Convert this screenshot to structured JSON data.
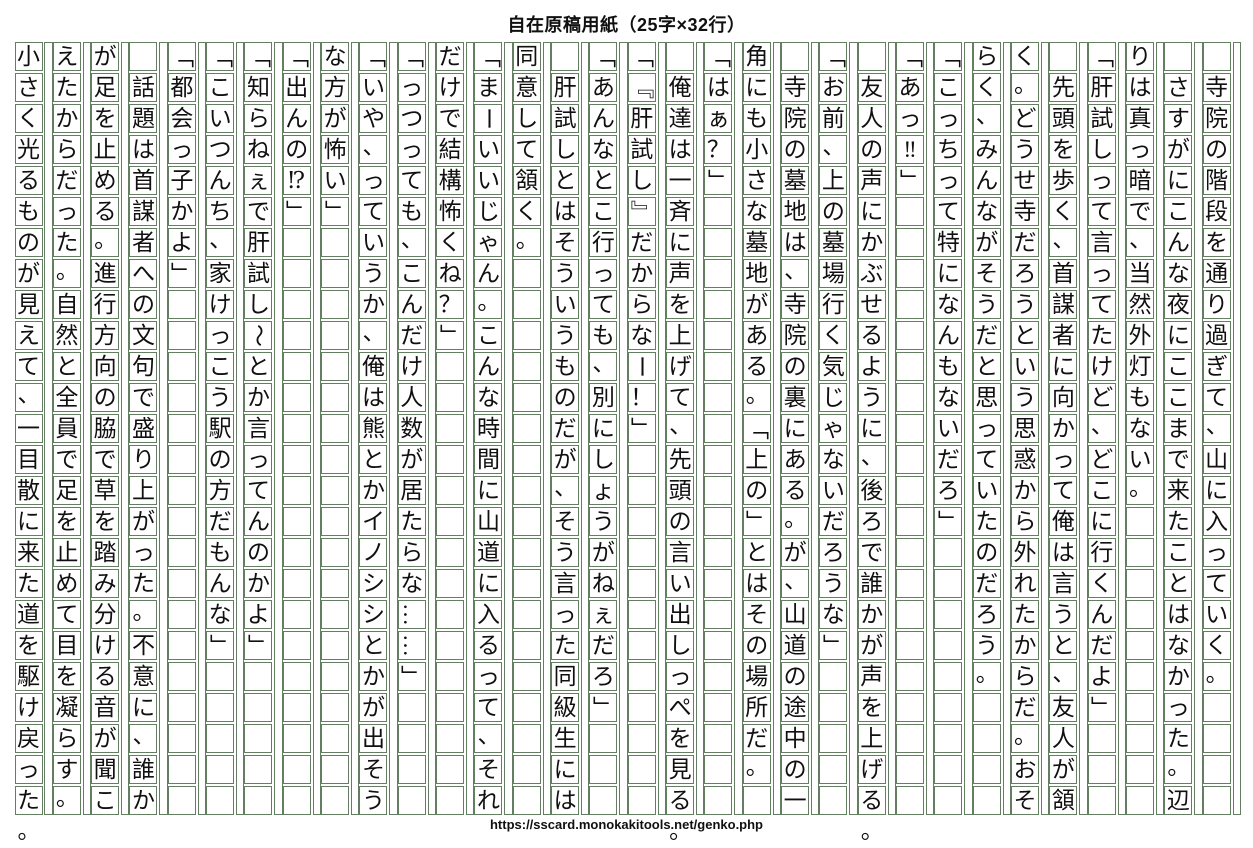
{
  "title": "自在原稿用紙（25字×32行）",
  "footer_url": "https://sscard.monokakitools.net/genko.php",
  "grid": {
    "columns": 32,
    "rows": 25,
    "border_color": "#637e60",
    "direction": "vertical-right-to-left"
  },
  "manuscript": {
    "columns": [
      {
        "indent": true,
        "text": "寺院の階段を通り過ぎて、山に入っていく。"
      },
      {
        "indent": true,
        "text": "さすがにこんな夜にここまで来たことはなかった。辺"
      },
      {
        "indent": false,
        "text": "りは真っ暗で、当然外灯もない。"
      },
      {
        "indent": false,
        "text": "「肝試しって言ってたけど、どこに行くんだよ」"
      },
      {
        "indent": true,
        "text": "先頭を歩く、首謀者に向かって俺は言うと、友人が頷"
      },
      {
        "indent": false,
        "text": "く。どうせ寺だろうという思惑から外れたからだ。おそ"
      },
      {
        "indent": false,
        "text": "らく、みんながそうだと思っていたのだろう。"
      },
      {
        "indent": false,
        "text": "「こっちって特になんもないだろ」"
      },
      {
        "indent": false,
        "text": "「あっ‼」"
      },
      {
        "indent": true,
        "text": "友人の声にかぶせるように、後ろで誰かが声を上げる。"
      },
      {
        "indent": false,
        "text": "「お前、上の墓場行く気じゃないだろうな」"
      },
      {
        "indent": true,
        "text": "寺院の墓地は、寺院の裏にある。が、山道の途中の一"
      },
      {
        "indent": false,
        "text": "角にも小さな墓地がある。「上の」とはその場所だ。"
      },
      {
        "indent": false,
        "text": "「はぁ？」"
      },
      {
        "indent": true,
        "text": "俺達は一斉に声を上げて、先頭の言い出しっぺを見る。"
      },
      {
        "indent": false,
        "text": "「『肝試し』だからなー！」"
      },
      {
        "indent": false,
        "text": "「あんなとこ行っても、別にしょうがねぇだろ」"
      },
      {
        "indent": true,
        "text": "肝試しとはそういうものだが、そう言った同級生には"
      },
      {
        "indent": false,
        "text": "同意して頷く。"
      },
      {
        "indent": false,
        "text": "「まーいいじゃん。こんな時間に山道に入るって、それ"
      },
      {
        "indent": false,
        "text": "だけで結構怖くね？」"
      },
      {
        "indent": false,
        "text": "「っつっても、こんだけ人数が居たらな……」"
      },
      {
        "indent": false,
        "text": "「いや、っていうか、俺は熊とかイノシシとかが出そう"
      },
      {
        "indent": false,
        "text": "な方が怖い」"
      },
      {
        "indent": false,
        "text": "「出んの⁉」"
      },
      {
        "indent": false,
        "text": "「知らねぇで肝試し～とか言ってんのかよ」"
      },
      {
        "indent": false,
        "text": "「こいつんち、家けっこう駅の方だもんな」"
      },
      {
        "indent": false,
        "text": "「都会っ子かよ」"
      },
      {
        "indent": true,
        "text": "話題は首謀者への文句で盛り上がった。不意に、誰か"
      },
      {
        "indent": false,
        "text": "が足を止める。進行方向の脇で草を踏み分ける音が聞こ"
      },
      {
        "indent": false,
        "text": "えたからだった。自然と全員で足を止めて目を凝らす。"
      },
      {
        "indent": false,
        "text": "小さく光るものが見えて、一目散に来た道を駆け戻った。"
      }
    ]
  }
}
